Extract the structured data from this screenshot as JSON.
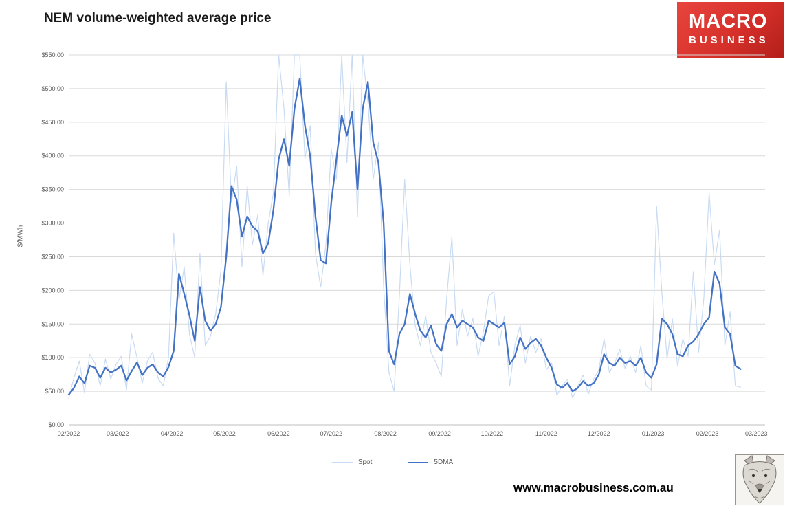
{
  "header": {
    "logo": {
      "line1": "MACRO",
      "line2": "BUSINESS",
      "bg": "#d6302a"
    }
  },
  "footer": {
    "url": "www.macrobusiness.com.au",
    "wolf_logo": "wolf-sketch-icon"
  },
  "colors": {
    "spot_line": "#c9dbf2",
    "dma_line": "#4472c4",
    "gridline": "#d9d9d9",
    "axis_text": "#595959",
    "logo_red": "#d6302a"
  },
  "chart_data": {
    "type": "line",
    "title": "NEM volume-weighted average price",
    "xlabel": "",
    "ylabel": "$/MWh",
    "ylim": [
      0,
      550
    ],
    "y_tick_step": 50,
    "grid": true,
    "legend_position": "bottom",
    "y_tick_labels": [
      "$0.00",
      "$50.00",
      "$100.00",
      "$150.00",
      "$200.00",
      "$250.00",
      "$300.00",
      "$350.00",
      "$400.00",
      "$450.00",
      "$500.00",
      "$550.00"
    ],
    "x_tick_labels": [
      "02/2022",
      "03/2022",
      "04/2022",
      "05/2022",
      "06/2022",
      "07/2022",
      "08/2022",
      "09/2022",
      "10/2022",
      "11/2022",
      "12/2022",
      "01/2023",
      "02/2023",
      "03/2023"
    ],
    "x_tick_days": [
      0,
      28,
      59,
      89,
      120,
      150,
      181,
      212,
      242,
      273,
      303,
      334,
      365,
      393
    ],
    "x_days": [
      0,
      3,
      6,
      9,
      12,
      15,
      18,
      21,
      24,
      27,
      30,
      33,
      36,
      39,
      42,
      45,
      48,
      51,
      54,
      57,
      60,
      63,
      66,
      69,
      72,
      75,
      78,
      81,
      84,
      87,
      90,
      93,
      96,
      99,
      102,
      105,
      108,
      111,
      114,
      117,
      120,
      123,
      126,
      129,
      132,
      135,
      138,
      141,
      144,
      147,
      150,
      153,
      156,
      159,
      162,
      165,
      168,
      171,
      174,
      177,
      180,
      183,
      186,
      189,
      192,
      195,
      198,
      201,
      204,
      207,
      210,
      213,
      216,
      219,
      222,
      225,
      228,
      231,
      234,
      237,
      240,
      243,
      246,
      249,
      252,
      255,
      258,
      261,
      264,
      267,
      270,
      273,
      276,
      279,
      282,
      285,
      288,
      291,
      294,
      297,
      300,
      303,
      306,
      309,
      312,
      315,
      318,
      321,
      324,
      327,
      330,
      333,
      336,
      339,
      342,
      345,
      348,
      351,
      354,
      357,
      360,
      363,
      366,
      369,
      372,
      375,
      378,
      381,
      384
    ],
    "series": [
      {
        "name": "Spot",
        "color": "#c9dbf2",
        "width": 1.2,
        "values": [
          40,
          70,
          95,
          48,
          105,
          92,
          58,
          98,
          68,
          90,
          102,
          52,
          135,
          100,
          62,
          95,
          108,
          70,
          58,
          100,
          285,
          185,
          235,
          135,
          100,
          255,
          118,
          132,
          165,
          230,
          510,
          330,
          385,
          235,
          355,
          268,
          312,
          222,
          300,
          345,
          550,
          470,
          340,
          550,
          550,
          395,
          445,
          255,
          205,
          268,
          410,
          365,
          550,
          390,
          550,
          310,
          550,
          480,
          365,
          420,
          205,
          78,
          50,
          192,
          365,
          238,
          148,
          118,
          162,
          108,
          92,
          72,
          188,
          280,
          118,
          172,
          132,
          158,
          102,
          138,
          192,
          198,
          118,
          162,
          58,
          118,
          148,
          92,
          132,
          108,
          128,
          82,
          92,
          44,
          58,
          68,
          40,
          58,
          74,
          46,
          68,
          82,
          128,
          78,
          92,
          112,
          84,
          102,
          78,
          118,
          58,
          52,
          325,
          198,
          98,
          158,
          88,
          128,
          102,
          228,
          108,
          188,
          345,
          238,
          290,
          118,
          168,
          58,
          56
        ]
      },
      {
        "name": "5DMA",
        "color": "#4472c4",
        "width": 2.3,
        "values": [
          45,
          55,
          72,
          62,
          88,
          85,
          70,
          85,
          78,
          82,
          88,
          66,
          80,
          93,
          74,
          85,
          90,
          78,
          72,
          86,
          110,
          225,
          195,
          163,
          125,
          205,
          155,
          140,
          150,
          175,
          250,
          355,
          335,
          280,
          310,
          295,
          288,
          255,
          270,
          320,
          395,
          425,
          385,
          470,
          515,
          445,
          400,
          310,
          245,
          240,
          330,
          395,
          460,
          430,
          465,
          350,
          470,
          510,
          420,
          390,
          300,
          110,
          90,
          135,
          150,
          195,
          165,
          140,
          130,
          148,
          120,
          110,
          150,
          165,
          145,
          155,
          150,
          145,
          130,
          125,
          155,
          150,
          145,
          152,
          90,
          102,
          130,
          113,
          122,
          128,
          118,
          100,
          85,
          60,
          55,
          62,
          50,
          55,
          65,
          58,
          62,
          75,
          105,
          92,
          88,
          100,
          92,
          95,
          88,
          100,
          78,
          70,
          90,
          158,
          150,
          135,
          105,
          102,
          118,
          124,
          135,
          150,
          160,
          228,
          210,
          145,
          135,
          88,
          83
        ]
      }
    ]
  }
}
